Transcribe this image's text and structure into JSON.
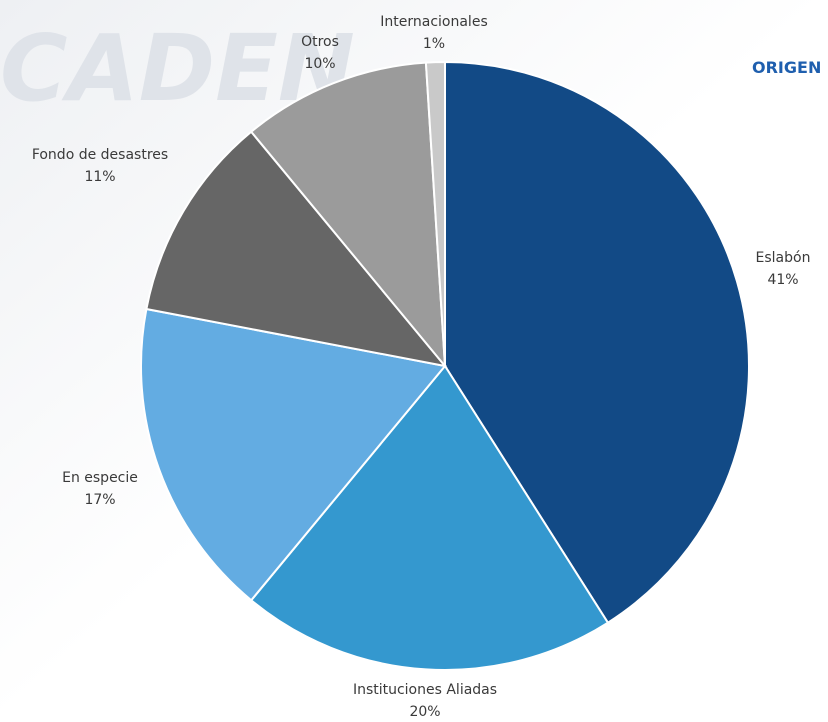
{
  "watermark": "CADEN",
  "chart_data": {
    "type": "pie",
    "title": "ORIGEN",
    "categories": [
      "Eslabón",
      "Instituciones Aliadas",
      "En especie",
      "Fondo de desastres",
      "Otros",
      "Internacionales"
    ],
    "values": [
      41,
      20,
      17,
      11,
      10,
      1
    ],
    "value_labels": [
      "41%",
      "20%",
      "17%",
      "11%",
      "10%",
      "1%"
    ],
    "colors": [
      "#124a86",
      "#3498cf",
      "#63ace2",
      "#666666",
      "#9b9b9b",
      "#c9c9c9"
    ]
  }
}
